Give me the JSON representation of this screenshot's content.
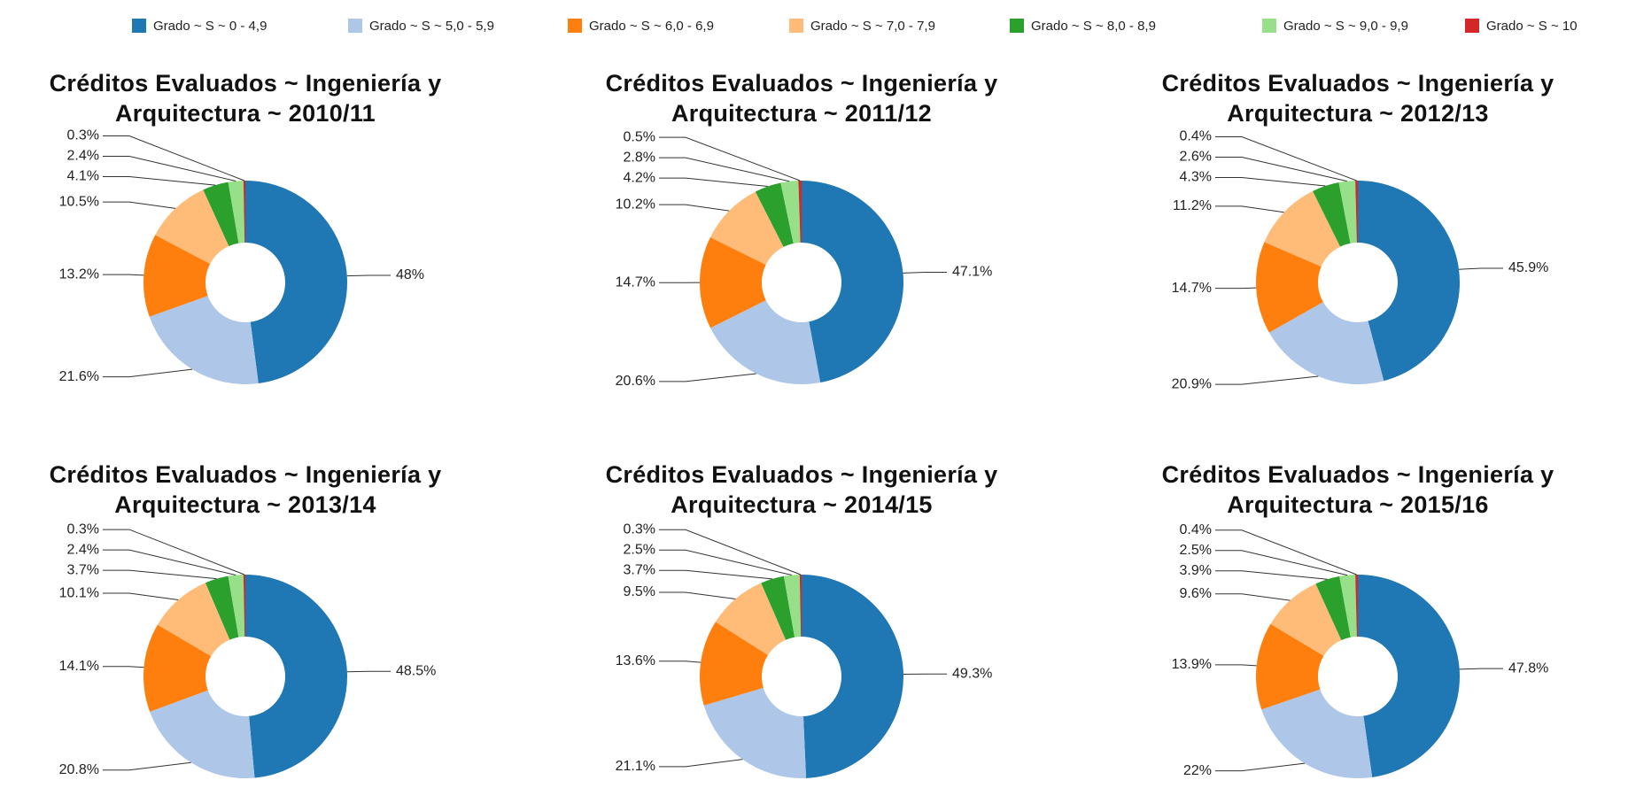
{
  "legend": {
    "items": [
      {
        "name": "Grado ~ S ~ 0 - 4,9",
        "color": "#1f77b4"
      },
      {
        "name": "Grado ~ S ~ 5,0 - 5,9",
        "color": "#aec7e8"
      },
      {
        "name": "Grado ~ S ~ 6,0 - 6,9",
        "color": "#ff7f0e"
      },
      {
        "name": "Grado ~ S ~ 7,0 - 7,9",
        "color": "#ffbb78"
      },
      {
        "name": "Grado ~ S ~ 8,0 - 8,9",
        "color": "#2ca02c"
      },
      {
        "name": "Grado ~ S ~ 9,0 - 9,9",
        "color": "#98df8a"
      },
      {
        "name": "Grado ~ S ~ 10",
        "color": "#d62728"
      }
    ]
  },
  "chart_data": [
    {
      "type": "pie",
      "donut": true,
      "title": "Créditos Evaluados ~ Ingeniería y Arquitectura ~ 2010/11",
      "values": [
        48,
        21.6,
        13.2,
        10.5,
        4.1,
        2.4,
        0.3
      ],
      "value_labels": [
        "48%",
        "21.6%",
        "13.2%",
        "10.5%",
        "4.1%",
        "2.4%",
        "0.3%"
      ]
    },
    {
      "type": "pie",
      "donut": true,
      "title": "Créditos Evaluados ~ Ingeniería y Arquitectura ~ 2011/12",
      "values": [
        47.1,
        20.6,
        14.7,
        10.2,
        4.2,
        2.8,
        0.5
      ],
      "value_labels": [
        "47.1%",
        "20.6%",
        "14.7%",
        "10.2%",
        "4.2%",
        "2.8%",
        "0.5%"
      ]
    },
    {
      "type": "pie",
      "donut": true,
      "title": "Créditos Evaluados ~ Ingeniería y Arquitectura ~ 2012/13",
      "values": [
        45.9,
        20.9,
        14.7,
        11.2,
        4.3,
        2.6,
        0.4
      ],
      "value_labels": [
        "45.9%",
        "20.9%",
        "14.7%",
        "11.2%",
        "4.3%",
        "2.6%",
        "0.4%"
      ]
    },
    {
      "type": "pie",
      "donut": true,
      "title": "Créditos Evaluados ~ Ingeniería y Arquitectura ~ 2013/14",
      "values": [
        48.5,
        20.8,
        14.1,
        10.1,
        3.7,
        2.4,
        0.3
      ],
      "value_labels": [
        "48.5%",
        "20.8%",
        "14.1%",
        "10.1%",
        "3.7%",
        "2.4%",
        "0.3%"
      ]
    },
    {
      "type": "pie",
      "donut": true,
      "title": "Créditos Evaluados ~ Ingeniería y Arquitectura ~ 2014/15",
      "values": [
        49.3,
        21.1,
        13.6,
        9.5,
        3.7,
        2.5,
        0.3
      ],
      "value_labels": [
        "49.3%",
        "21.1%",
        "13.6%",
        "9.5%",
        "3.7%",
        "2.5%",
        "0.3%"
      ]
    },
    {
      "type": "pie",
      "donut": true,
      "title": "Créditos Evaluados ~ Ingeniería y Arquitectura ~ 2015/16",
      "values": [
        47.8,
        22,
        13.9,
        9.6,
        3.9,
        2.5,
        0.4
      ],
      "value_labels": [
        "47.8%",
        "22%",
        "13.9%",
        "9.6%",
        "3.9%",
        "2.5%",
        "0.4%"
      ]
    }
  ]
}
